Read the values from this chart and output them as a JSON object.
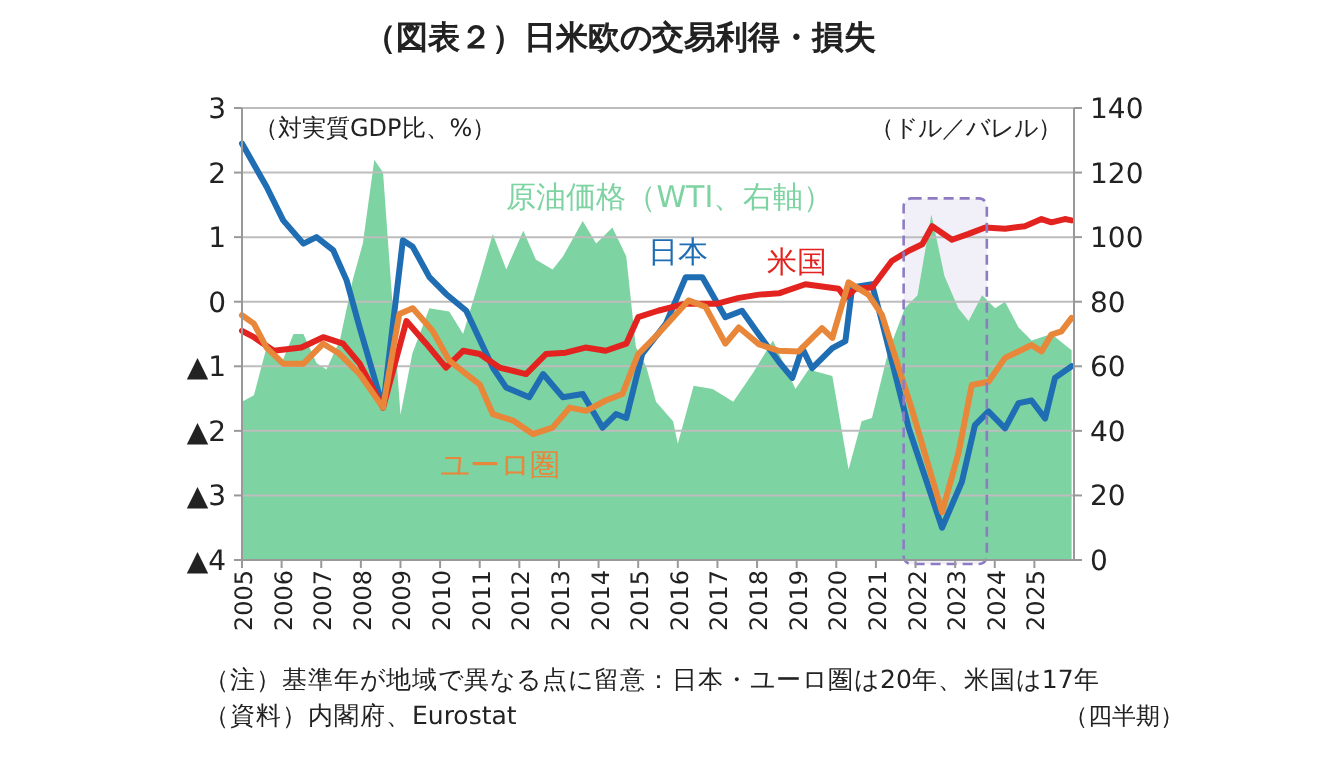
{
  "chart_data": {
    "type": "line",
    "title": "（図表２）日米欧の交易利得・損失",
    "ylabel": "（対実質GDP比、%）",
    "y2label": "（ドル／バレル）",
    "xlabel": "（四半期）",
    "annotations": [
      "（注）基準年が地域で異なる点に留意：日本・ユーロ圏は20年、米国は17年",
      "（資料）内閣府、Eurostat"
    ],
    "xlim": [
      2005,
      2026
    ],
    "xticks": [
      2005,
      2006,
      2007,
      2008,
      2009,
      2010,
      2011,
      2012,
      2013,
      2014,
      2015,
      2016,
      2017,
      2018,
      2019,
      2020,
      2021,
      2022,
      2023,
      2024,
      2025
    ],
    "ylim": [
      -4,
      3
    ],
    "yticks": [
      {
        "value": -4,
        "label": "▲4"
      },
      {
        "value": -3,
        "label": "▲3"
      },
      {
        "value": -2,
        "label": "▲2"
      },
      {
        "value": -1,
        "label": "▲1"
      },
      0,
      1,
      2,
      3
    ],
    "y2lim": [
      0,
      140
    ],
    "y2ticks": [
      0,
      20,
      40,
      60,
      80,
      100,
      120,
      140
    ],
    "grid": "y",
    "legend": false,
    "bands": [
      {
        "axis": "x",
        "from": 2021.7,
        "to": 2023.8,
        "color": "#8e7cc3"
      }
    ],
    "series": [
      {
        "name": "原油価格（WTI、右軸）",
        "type": "area",
        "axis": "y2",
        "color": "#7dd3a2",
        "x": [
          2005.0,
          2005.3,
          2005.6,
          2006.0,
          2006.3,
          2006.55,
          2006.88,
          2007.13,
          2007.47,
          2007.8,
          2008.05,
          2008.34,
          2008.56,
          2009.0,
          2009.3,
          2009.73,
          2010.23,
          2010.58,
          2011.0,
          2011.33,
          2011.67,
          2012.1,
          2012.42,
          2012.84,
          2013.1,
          2013.6,
          2013.94,
          2014.35,
          2014.7,
          2014.94,
          2015.2,
          2015.45,
          2015.88,
          2016.0,
          2016.4,
          2016.88,
          2017.4,
          2017.9,
          2018.4,
          2018.97,
          2019.3,
          2019.9,
          2020.31,
          2020.64,
          2020.9,
          2021.3,
          2021.73,
          2022.05,
          2022.4,
          2022.73,
          2023.08,
          2023.34,
          2023.68,
          2024.01,
          2024.26,
          2024.6,
          2024.93,
          2025.43,
          2025.94
        ],
        "values": [
          49,
          51,
          65,
          61,
          70,
          70,
          61,
          59,
          68,
          87,
          98,
          124,
          120,
          45,
          64,
          78,
          77,
          70,
          87,
          101,
          90,
          102,
          93,
          90,
          94,
          105,
          98,
          103,
          94,
          66,
          60,
          49,
          43,
          36,
          54,
          53,
          49,
          58,
          68,
          53,
          59,
          57,
          28,
          43,
          44,
          64,
          78,
          82,
          107,
          88,
          78,
          74,
          82,
          78,
          80,
          72,
          68,
          70,
          65
        ]
      },
      {
        "name": "日本",
        "color": "#1f6db3",
        "x": [
          2005.0,
          2005.62,
          2006.04,
          2006.55,
          2006.88,
          2007.3,
          2007.64,
          2007.97,
          2008.56,
          2009.06,
          2009.31,
          2009.73,
          2010.15,
          2010.66,
          2011.33,
          2011.67,
          2012.25,
          2012.6,
          2013.1,
          2013.6,
          2014.1,
          2014.44,
          2014.7,
          2015.1,
          2015.7,
          2016.2,
          2016.62,
          2017.2,
          2017.62,
          2018.05,
          2018.55,
          2018.89,
          2019.14,
          2019.39,
          2019.9,
          2020.23,
          2020.4,
          2020.9,
          2021.15,
          2021.83,
          2022.67,
          2023.17,
          2023.5,
          2023.84,
          2024.26,
          2024.6,
          2024.93,
          2025.27,
          2025.52,
          2025.94
        ],
        "values": [
          2.45,
          1.78,
          1.26,
          0.9,
          1.0,
          0.8,
          0.33,
          -0.4,
          -1.64,
          0.95,
          0.85,
          0.38,
          0.12,
          -0.14,
          -1.02,
          -1.33,
          -1.48,
          -1.12,
          -1.48,
          -1.43,
          -1.95,
          -1.74,
          -1.8,
          -0.81,
          -0.34,
          0.38,
          0.38,
          -0.24,
          -0.14,
          -0.51,
          -0.93,
          -1.18,
          -0.72,
          -1.03,
          -0.72,
          -0.61,
          0.22,
          0.27,
          -0.3,
          -1.96,
          -3.5,
          -2.79,
          -1.91,
          -1.7,
          -1.96,
          -1.57,
          -1.53,
          -1.81,
          -1.18,
          -1.0
        ]
      },
      {
        "name": "米国",
        "color": "#e2231f",
        "x": [
          2005.0,
          2005.3,
          2005.8,
          2006.5,
          2007.05,
          2007.55,
          2007.97,
          2008.56,
          2009.15,
          2009.65,
          2010.15,
          2010.58,
          2011.0,
          2011.5,
          2012.17,
          2012.67,
          2013.17,
          2013.67,
          2014.18,
          2014.7,
          2015.0,
          2015.5,
          2016.2,
          2017.0,
          2017.54,
          2018.05,
          2018.55,
          2019.22,
          2020.06,
          2020.23,
          2020.48,
          2020.9,
          2021.4,
          2021.83,
          2022.17,
          2022.42,
          2022.92,
          2023.34,
          2023.76,
          2024.26,
          2024.76,
          2025.18,
          2025.43,
          2025.77,
          2025.94
        ],
        "values": [
          -0.45,
          -0.55,
          -0.76,
          -0.71,
          -0.55,
          -0.65,
          -0.96,
          -1.64,
          -0.3,
          -0.65,
          -1.02,
          -0.76,
          -0.81,
          -1.02,
          -1.12,
          -0.81,
          -0.79,
          -0.71,
          -0.76,
          -0.65,
          -0.24,
          -0.14,
          -0.03,
          -0.03,
          0.06,
          0.11,
          0.13,
          0.27,
          0.2,
          0.06,
          0.2,
          0.22,
          0.63,
          0.79,
          0.89,
          1.17,
          0.96,
          1.05,
          1.15,
          1.13,
          1.17,
          1.28,
          1.23,
          1.28,
          1.26
        ]
      },
      {
        "name": "ユーロ圏",
        "color": "#e8863a",
        "x": [
          2005.0,
          2005.3,
          2005.62,
          2006.04,
          2006.55,
          2007.05,
          2007.47,
          2007.97,
          2008.56,
          2008.97,
          2009.31,
          2009.81,
          2010.23,
          2010.66,
          2011.0,
          2011.33,
          2011.84,
          2012.34,
          2012.84,
          2013.27,
          2013.69,
          2014.18,
          2014.6,
          2015.0,
          2015.5,
          2016.27,
          2016.7,
          2017.2,
          2017.54,
          2018.05,
          2018.55,
          2019.05,
          2019.64,
          2019.9,
          2020.31,
          2020.81,
          2021.15,
          2021.9,
          2022.67,
          2023.09,
          2023.42,
          2023.84,
          2024.26,
          2024.93,
          2025.18,
          2025.43,
          2025.68,
          2025.94
        ],
        "values": [
          -0.21,
          -0.34,
          -0.71,
          -0.96,
          -0.96,
          -0.65,
          -0.81,
          -1.12,
          -1.64,
          -0.19,
          -0.1,
          -0.45,
          -0.91,
          -1.12,
          -1.28,
          -1.74,
          -1.84,
          -2.05,
          -1.95,
          -1.64,
          -1.69,
          -1.53,
          -1.43,
          -0.81,
          -0.5,
          0.02,
          -0.08,
          -0.65,
          -0.4,
          -0.66,
          -0.76,
          -0.77,
          -0.41,
          -0.56,
          0.3,
          0.11,
          -0.2,
          -1.65,
          -3.26,
          -2.33,
          -1.29,
          -1.24,
          -0.87,
          -0.67,
          -0.77,
          -0.51,
          -0.46,
          -0.25
        ]
      }
    ]
  }
}
